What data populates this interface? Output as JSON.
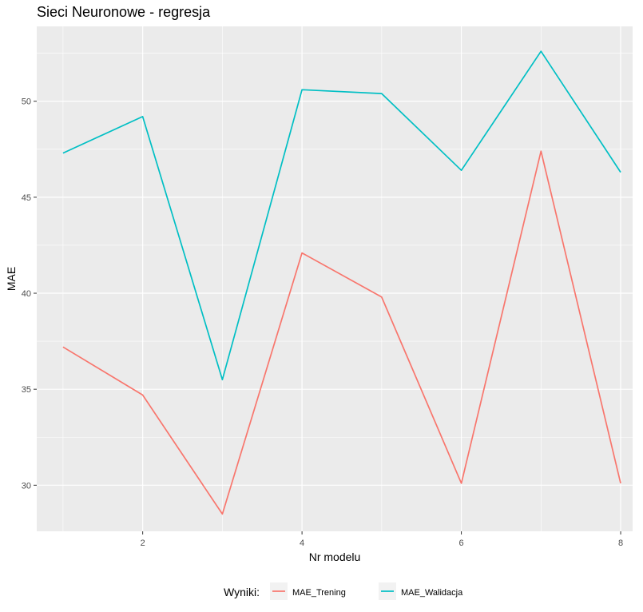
{
  "chart_data": {
    "type": "line",
    "title": "Sieci Neuronowe - regresja",
    "xlabel": "Nr modelu",
    "ylabel": "MAE",
    "x": [
      1,
      2,
      3,
      4,
      5,
      6,
      7,
      8
    ],
    "xlim": [
      0.67,
      8.15
    ],
    "ylim": [
      27.6,
      53.9
    ],
    "xticks": [
      2,
      4,
      6,
      8
    ],
    "yticks": [
      30,
      35,
      40,
      45,
      50
    ],
    "grid": true,
    "legend": {
      "title": "Wyniki:",
      "position": "bottom"
    },
    "series": [
      {
        "name": "MAE_Trening",
        "color": "#F8766D",
        "values": [
          37.2,
          34.7,
          28.5,
          42.1,
          39.8,
          30.1,
          47.4,
          30.1
        ]
      },
      {
        "name": "MAE_Walidacja",
        "color": "#00BFC4",
        "values": [
          47.3,
          49.2,
          35.5,
          50.6,
          50.4,
          46.4,
          52.6,
          46.3
        ]
      }
    ]
  }
}
